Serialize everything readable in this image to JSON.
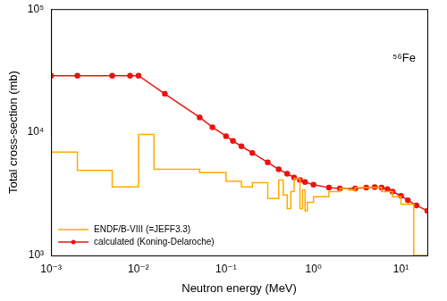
{
  "chart_data": {
    "type": "line",
    "x_label": "Neutron energy (MeV)",
    "y_label": "Total cross-section (mb)",
    "log": true,
    "grid": false,
    "legend": "lower left",
    "xlim": [
      0.001,
      20
    ],
    "ylim": [
      1000,
      100000
    ],
    "xticks": [
      {
        "value": 0.001,
        "label": "10⁻³"
      },
      {
        "value": 0.01,
        "label": "10⁻²"
      },
      {
        "value": 0.1,
        "label": "10⁻¹"
      },
      {
        "value": 1,
        "label": "10⁰"
      },
      {
        "value": 10,
        "label": "10¹"
      }
    ],
    "yticks": [
      {
        "value": 1000,
        "label": "10³"
      },
      {
        "value": 10000,
        "label": "10⁴"
      },
      {
        "value": 100000,
        "label": "10⁵"
      }
    ],
    "annotations": [
      {
        "text": "⁵⁶Fe",
        "x": 8,
        "y": 40000
      }
    ],
    "series": [
      {
        "name": "ENDF/B-VIII (=JEFF3.3)",
        "color": "#ffaa00",
        "line_style": "step",
        "marker": "none",
        "x": [
          0.001,
          0.002,
          0.005,
          0.01,
          0.015,
          0.05,
          0.1,
          0.15,
          0.2,
          0.3,
          0.4,
          0.45,
          0.5,
          0.55,
          0.6,
          0.7,
          0.75,
          0.8,
          0.85,
          1,
          1.5,
          2,
          2.5,
          3,
          4,
          6,
          8,
          10,
          14,
          20
        ],
        "values": [
          9200,
          6900,
          4900,
          3600,
          9600,
          5000,
          4700,
          4000,
          3600,
          3900,
          2900,
          4100,
          3100,
          2400,
          3300,
          4200,
          2400,
          3400,
          2300,
          2700,
          3000,
          3300,
          3500,
          3400,
          3550,
          3550,
          3300,
          3000,
          2600,
          1000
        ]
      },
      {
        "name": "calculated (Koning-Delaroche)",
        "color": "#ee1111",
        "line_style": "solid",
        "marker": "circle",
        "x": [
          0.001,
          0.002,
          0.005,
          0.008,
          0.01,
          0.02,
          0.05,
          0.07,
          0.1,
          0.12,
          0.15,
          0.2,
          0.3,
          0.4,
          0.5,
          0.6,
          0.7,
          0.8,
          1,
          1.5,
          2,
          3,
          4,
          5,
          6,
          7,
          8,
          10,
          12,
          15,
          20
        ],
        "values": [
          28800,
          28800,
          28800,
          28800,
          28800,
          20500,
          13200,
          11000,
          9300,
          8500,
          7700,
          6800,
          5700,
          5000,
          4600,
          4300,
          4100,
          3950,
          3750,
          3550,
          3500,
          3500,
          3550,
          3580,
          3560,
          3450,
          3300,
          3050,
          2800,
          2550,
          2300
        ]
      }
    ]
  }
}
